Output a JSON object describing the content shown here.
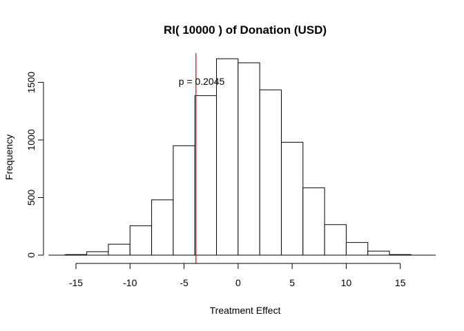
{
  "chart_data": {
    "type": "bar",
    "title": "RI( 10000 ) of Donation (USD)",
    "xlabel": "Treatment Effect",
    "ylabel": "Frequency",
    "annotation": "p =  0.2045",
    "xlim": [
      -18,
      20
    ],
    "ylim": [
      0,
      1760
    ],
    "x_ticks": [
      -15,
      -10,
      -5,
      0,
      5,
      10,
      15
    ],
    "y_ticks": [
      0,
      500,
      1000,
      1500
    ],
    "bins": [
      {
        "start": -16,
        "end": -14,
        "count": 5
      },
      {
        "start": -14,
        "end": -12,
        "count": 30
      },
      {
        "start": -12,
        "end": -10,
        "count": 95
      },
      {
        "start": -10,
        "end": -8,
        "count": 255
      },
      {
        "start": -8,
        "end": -6,
        "count": 480
      },
      {
        "start": -6,
        "end": -4,
        "count": 950
      },
      {
        "start": -4,
        "end": -2,
        "count": 1385
      },
      {
        "start": -2,
        "end": 0,
        "count": 1705
      },
      {
        "start": 0,
        "end": 2,
        "count": 1670
      },
      {
        "start": 2,
        "end": 4,
        "count": 1435
      },
      {
        "start": 4,
        "end": 6,
        "count": 980
      },
      {
        "start": 6,
        "end": 8,
        "count": 585
      },
      {
        "start": 8,
        "end": 10,
        "count": 265
      },
      {
        "start": 10,
        "end": 12,
        "count": 110
      },
      {
        "start": 12,
        "end": 14,
        "count": 35
      },
      {
        "start": 14,
        "end": 16,
        "count": 5
      }
    ],
    "reference_line": {
      "x": -3.9,
      "color": "#e00000"
    },
    "bar_fill": "#ffffff",
    "bar_stroke": "#000000",
    "grid": false
  }
}
